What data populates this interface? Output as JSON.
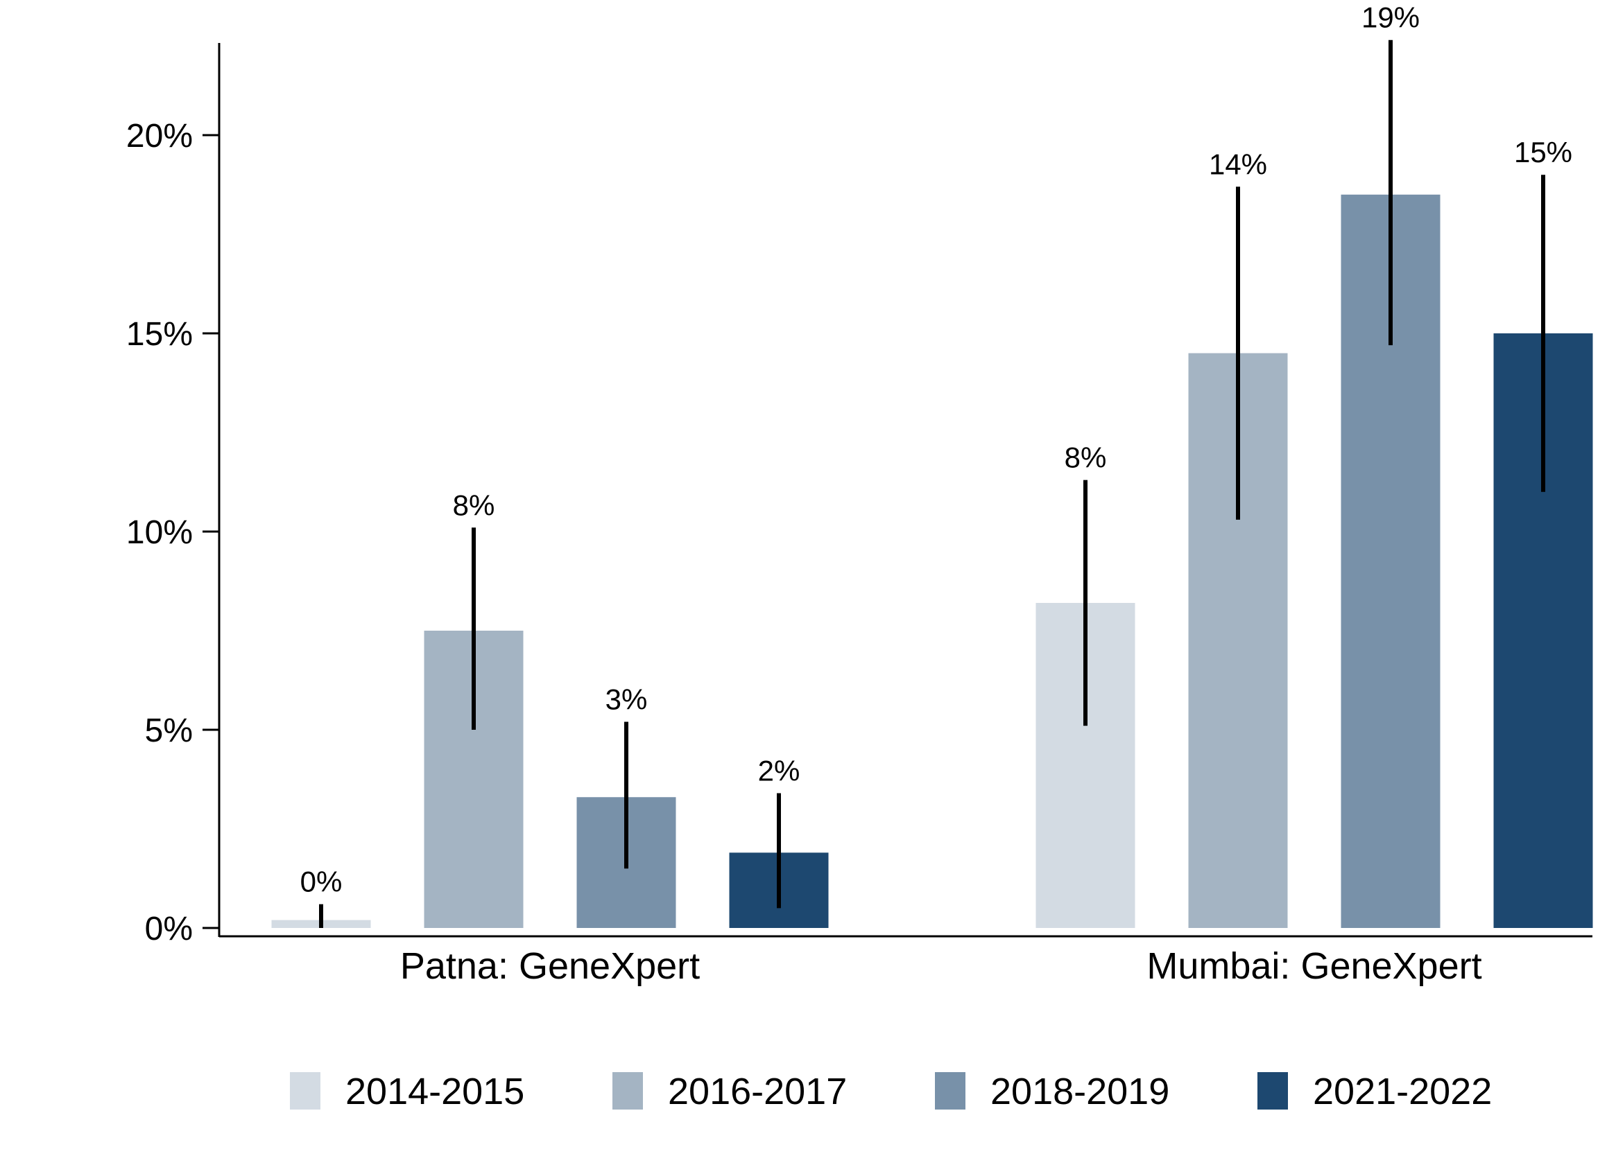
{
  "chart_data": {
    "type": "bar",
    "categories": [
      "Patna: GeneXpert",
      "Mumbai: GeneXpert"
    ],
    "series": [
      {
        "name": "2014-2015",
        "color": "#d3dbe3",
        "values": [
          0.2,
          8.2
        ],
        "ci_low": [
          0.0,
          5.1
        ],
        "ci_high": [
          0.6,
          11.3
        ],
        "labels": [
          "0%",
          "8%"
        ]
      },
      {
        "name": "2016-2017",
        "color": "#a4b4c3",
        "values": [
          7.5,
          14.5
        ],
        "ci_low": [
          5.0,
          10.3
        ],
        "ci_high": [
          10.1,
          18.7
        ],
        "labels": [
          "8%",
          "14%"
        ]
      },
      {
        "name": "2018-2019",
        "color": "#7891a9",
        "values": [
          3.3,
          18.5
        ],
        "ci_low": [
          1.5,
          14.7
        ],
        "ci_high": [
          5.2,
          22.4
        ],
        "labels": [
          "3%",
          "19%"
        ]
      },
      {
        "name": "2021-2022",
        "color": "#1d4870",
        "values": [
          1.9,
          15.0
        ],
        "ci_low": [
          0.5,
          11.0
        ],
        "ci_high": [
          3.4,
          19.0
        ],
        "labels": [
          "2%",
          "15%"
        ]
      }
    ],
    "y_ticks": [
      {
        "value": 0,
        "label": "0%"
      },
      {
        "value": 5,
        "label": "5%"
      },
      {
        "value": 10,
        "label": "10%"
      },
      {
        "value": 15,
        "label": "15%"
      },
      {
        "value": 20,
        "label": "20%"
      }
    ],
    "ylim": [
      0,
      22.4
    ],
    "title": "",
    "xlabel": "",
    "ylabel": "",
    "grid": false,
    "legend_position": "bottom"
  }
}
